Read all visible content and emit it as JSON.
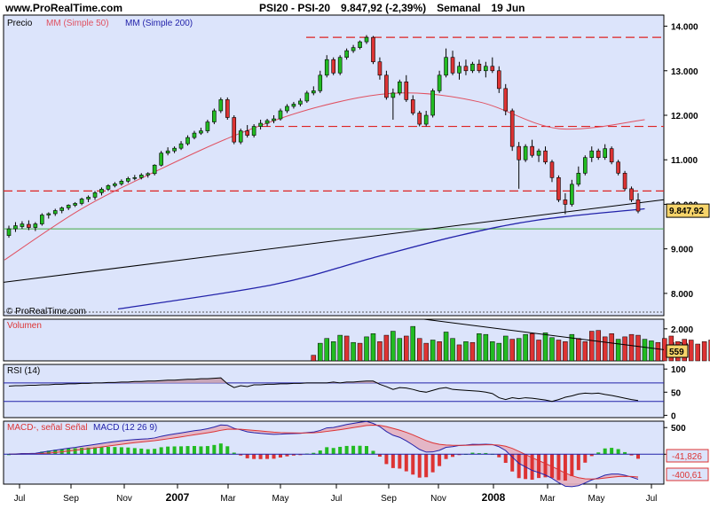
{
  "header": {
    "site": "www.ProRealTime.com",
    "instrument": "PSI20 - PSI-20",
    "price_change": "9.847,92 (-2,39%)",
    "period": "Semanal",
    "date": "19 Jun"
  },
  "colors": {
    "panel_bg": "#dce4fb",
    "up": "#22bb22",
    "down": "#dd3333",
    "ma50": "#e05060",
    "ma200": "#2222aa",
    "resistance": "#dd2222",
    "support": "#44aa44",
    "trend": "#000000"
  },
  "chart_data": [
    {
      "type": "candlestick",
      "title": "Precio",
      "legend": [
        "MM (Simple 50)",
        "MM (Simple 200)"
      ],
      "watermark": "© ProRealTime.com",
      "ylim": [
        7500,
        14250
      ],
      "yticks": [
        8000,
        9000,
        10000,
        11000,
        12000,
        13000,
        14000
      ],
      "ytick_labels": [
        "8.000",
        "9.000",
        "10.000",
        "11.000",
        "12.000",
        "13.000",
        "14.000"
      ],
      "last_price_label": "9.847,92",
      "last_price": 9847.92,
      "xticks": [
        "Jul",
        "Sep",
        "Nov",
        "2007",
        "Mar",
        "May",
        "Jul",
        "Sep",
        "Nov",
        "2008",
        "Mar",
        "May",
        "Jul"
      ],
      "candles": [
        {
          "o": 9300,
          "h": 9520,
          "l": 9250,
          "c": 9450
        },
        {
          "o": 9450,
          "h": 9600,
          "l": 9380,
          "c": 9520
        },
        {
          "o": 9500,
          "h": 9620,
          "l": 9450,
          "c": 9560
        },
        {
          "o": 9550,
          "h": 9640,
          "l": 9420,
          "c": 9480
        },
        {
          "o": 9480,
          "h": 9600,
          "l": 9400,
          "c": 9560
        },
        {
          "o": 9560,
          "h": 9800,
          "l": 9520,
          "c": 9760
        },
        {
          "o": 9760,
          "h": 9820,
          "l": 9680,
          "c": 9790
        },
        {
          "o": 9790,
          "h": 9900,
          "l": 9740,
          "c": 9860
        },
        {
          "o": 9860,
          "h": 9950,
          "l": 9800,
          "c": 9920
        },
        {
          "o": 9920,
          "h": 10000,
          "l": 9870,
          "c": 9980
        },
        {
          "o": 9980,
          "h": 10050,
          "l": 9940,
          "c": 10020
        },
        {
          "o": 10020,
          "h": 10150,
          "l": 9980,
          "c": 10120
        },
        {
          "o": 10120,
          "h": 10200,
          "l": 10050,
          "c": 10160
        },
        {
          "o": 10160,
          "h": 10300,
          "l": 10100,
          "c": 10260
        },
        {
          "o": 10260,
          "h": 10380,
          "l": 10200,
          "c": 10340
        },
        {
          "o": 10340,
          "h": 10450,
          "l": 10300,
          "c": 10420
        },
        {
          "o": 10420,
          "h": 10500,
          "l": 10380,
          "c": 10460
        },
        {
          "o": 10460,
          "h": 10560,
          "l": 10420,
          "c": 10520
        },
        {
          "o": 10520,
          "h": 10620,
          "l": 10480,
          "c": 10580
        },
        {
          "o": 10580,
          "h": 10660,
          "l": 10540,
          "c": 10600
        },
        {
          "o": 10600,
          "h": 10700,
          "l": 10560,
          "c": 10660
        },
        {
          "o": 10660,
          "h": 10720,
          "l": 10600,
          "c": 10690
        },
        {
          "o": 10690,
          "h": 10900,
          "l": 10650,
          "c": 10880
        },
        {
          "o": 10880,
          "h": 11200,
          "l": 10850,
          "c": 11150
        },
        {
          "o": 11150,
          "h": 11280,
          "l": 11100,
          "c": 11200
        },
        {
          "o": 11200,
          "h": 11300,
          "l": 11150,
          "c": 11260
        },
        {
          "o": 11260,
          "h": 11420,
          "l": 11220,
          "c": 11360
        },
        {
          "o": 11360,
          "h": 11550,
          "l": 11320,
          "c": 11500
        },
        {
          "o": 11500,
          "h": 11650,
          "l": 11460,
          "c": 11600
        },
        {
          "o": 11600,
          "h": 11720,
          "l": 11560,
          "c": 11650
        },
        {
          "o": 11650,
          "h": 11900,
          "l": 11600,
          "c": 11850
        },
        {
          "o": 11850,
          "h": 12150,
          "l": 11800,
          "c": 12100
        },
        {
          "o": 12100,
          "h": 12400,
          "l": 12050,
          "c": 12350
        },
        {
          "o": 12350,
          "h": 12400,
          "l": 11900,
          "c": 11950
        },
        {
          "o": 11950,
          "h": 12000,
          "l": 11350,
          "c": 11400
        },
        {
          "o": 11400,
          "h": 11700,
          "l": 11350,
          "c": 11650
        },
        {
          "o": 11650,
          "h": 11780,
          "l": 11500,
          "c": 11550
        },
        {
          "o": 11550,
          "h": 11800,
          "l": 11500,
          "c": 11750
        },
        {
          "o": 11750,
          "h": 11900,
          "l": 11680,
          "c": 11820
        },
        {
          "o": 11820,
          "h": 11920,
          "l": 11750,
          "c": 11880
        },
        {
          "o": 11880,
          "h": 12000,
          "l": 11820,
          "c": 11920
        },
        {
          "o": 11920,
          "h": 12150,
          "l": 11880,
          "c": 12100
        },
        {
          "o": 12100,
          "h": 12250,
          "l": 12050,
          "c": 12200
        },
        {
          "o": 12200,
          "h": 12300,
          "l": 12150,
          "c": 12250
        },
        {
          "o": 12250,
          "h": 12380,
          "l": 12200,
          "c": 12320
        },
        {
          "o": 12320,
          "h": 12550,
          "l": 12280,
          "c": 12500
        },
        {
          "o": 12500,
          "h": 12650,
          "l": 12450,
          "c": 12550
        },
        {
          "o": 12550,
          "h": 13000,
          "l": 12500,
          "c": 12900
        },
        {
          "o": 12900,
          "h": 13350,
          "l": 12850,
          "c": 13250
        },
        {
          "o": 13250,
          "h": 13300,
          "l": 12900,
          "c": 12950
        },
        {
          "o": 12950,
          "h": 13350,
          "l": 12900,
          "c": 13300
        },
        {
          "o": 13300,
          "h": 13500,
          "l": 13250,
          "c": 13450
        },
        {
          "o": 13450,
          "h": 13580,
          "l": 13400,
          "c": 13520
        },
        {
          "o": 13520,
          "h": 13680,
          "l": 13480,
          "c": 13650
        },
        {
          "o": 13650,
          "h": 13800,
          "l": 13600,
          "c": 13750
        },
        {
          "o": 13750,
          "h": 13780,
          "l": 13150,
          "c": 13200
        },
        {
          "o": 13200,
          "h": 13300,
          "l": 12800,
          "c": 12900
        },
        {
          "o": 12900,
          "h": 13000,
          "l": 12350,
          "c": 12400
        },
        {
          "o": 12400,
          "h": 12600,
          "l": 11900,
          "c": 12500
        },
        {
          "o": 12500,
          "h": 12800,
          "l": 12450,
          "c": 12750
        },
        {
          "o": 12750,
          "h": 12900,
          "l": 12300,
          "c": 12350
        },
        {
          "o": 12350,
          "h": 12450,
          "l": 12000,
          "c": 12050
        },
        {
          "o": 12050,
          "h": 12100,
          "l": 11750,
          "c": 11800
        },
        {
          "o": 11800,
          "h": 12100,
          "l": 11750,
          "c": 12000
        },
        {
          "o": 12000,
          "h": 12600,
          "l": 11950,
          "c": 12550
        },
        {
          "o": 12550,
          "h": 13000,
          "l": 12500,
          "c": 12900
        },
        {
          "o": 12900,
          "h": 13500,
          "l": 12850,
          "c": 13300
        },
        {
          "o": 13300,
          "h": 13450,
          "l": 12900,
          "c": 12950
        },
        {
          "o": 12950,
          "h": 13200,
          "l": 12800,
          "c": 13100
        },
        {
          "o": 13100,
          "h": 13250,
          "l": 12900,
          "c": 13000
        },
        {
          "o": 13000,
          "h": 13200,
          "l": 12950,
          "c": 13150
        },
        {
          "o": 13150,
          "h": 13250,
          "l": 12950,
          "c": 13000
        },
        {
          "o": 13000,
          "h": 13200,
          "l": 12850,
          "c": 13100
        },
        {
          "o": 13100,
          "h": 13300,
          "l": 12950,
          "c": 13000
        },
        {
          "o": 13000,
          "h": 13100,
          "l": 12500,
          "c": 12600
        },
        {
          "o": 12600,
          "h": 12700,
          "l": 12000,
          "c": 12100
        },
        {
          "o": 12100,
          "h": 12150,
          "l": 11200,
          "c": 11300
        },
        {
          "o": 11300,
          "h": 11400,
          "l": 10350,
          "c": 11000
        },
        {
          "o": 11000,
          "h": 11350,
          "l": 10950,
          "c": 11300
        },
        {
          "o": 11300,
          "h": 11450,
          "l": 11050,
          "c": 11100
        },
        {
          "o": 11100,
          "h": 11250,
          "l": 10950,
          "c": 11200
        },
        {
          "o": 11200,
          "h": 11300,
          "l": 10900,
          "c": 10950
        },
        {
          "o": 10950,
          "h": 11000,
          "l": 10500,
          "c": 10600
        },
        {
          "o": 10600,
          "h": 10650,
          "l": 10050,
          "c": 10100
        },
        {
          "o": 10100,
          "h": 10250,
          "l": 9780,
          "c": 10000
        },
        {
          "o": 10000,
          "h": 10550,
          "l": 9950,
          "c": 10450
        },
        {
          "o": 10450,
          "h": 10850,
          "l": 10400,
          "c": 10700
        },
        {
          "o": 10700,
          "h": 11100,
          "l": 10650,
          "c": 11050
        },
        {
          "o": 11050,
          "h": 11300,
          "l": 10950,
          "c": 11200
        },
        {
          "o": 11200,
          "h": 11250,
          "l": 11000,
          "c": 11050
        },
        {
          "o": 11050,
          "h": 11350,
          "l": 11000,
          "c": 11250
        },
        {
          "o": 11250,
          "h": 11300,
          "l": 10900,
          "c": 10950
        },
        {
          "o": 10950,
          "h": 11000,
          "l": 10650,
          "c": 10700
        },
        {
          "o": 10700,
          "h": 10750,
          "l": 10300,
          "c": 10350
        },
        {
          "o": 10350,
          "h": 10400,
          "l": 10050,
          "c": 10100
        },
        {
          "o": 10100,
          "h": 10250,
          "l": 9800,
          "c": 9848
        }
      ],
      "ma50": [
        9200,
        9900,
        10800,
        11600,
        12200,
        12500,
        12300,
        11700,
        10700
      ],
      "ma200": [
        null,
        null,
        8580,
        9000,
        9400,
        9700,
        9900,
        9950,
        10000
      ],
      "trendline_black": [
        [
          0,
          8250
        ],
        [
          96,
          10050
        ]
      ],
      "trendline_blue_end": [
        96,
        9900
      ],
      "resistance_levels": [
        13750,
        11750,
        10300
      ],
      "support_level": 9450
    },
    {
      "type": "bar",
      "title": "Volumen",
      "ylim": [
        0,
        2600
      ],
      "yticks": [
        1000,
        2000
      ],
      "ytick_labels": [
        "1.000",
        "2.000"
      ],
      "last_label": "559",
      "values_start_index": 46,
      "values": [
        350,
        1100,
        1400,
        1200,
        1600,
        1550,
        1150,
        1100,
        1500,
        1700,
        1200,
        1600,
        1850,
        1400,
        1550,
        2150,
        1400,
        1100,
        1300,
        1200,
        1800,
        1400,
        1000,
        1200,
        1150,
        1700,
        1650,
        1200,
        1100,
        1550,
        1350,
        1400,
        1650,
        1700,
        1300,
        1750,
        1450,
        1300,
        1200,
        1650,
        1400,
        1200,
        1850,
        1900,
        1500,
        1700,
        1350,
        1500,
        1650,
        1600,
        1350,
        1250,
        1150,
        1400,
        1550,
        1200,
        1350,
        1300,
        1050,
        1200,
        1300,
        1250,
        1250,
        1200,
        1150,
        1050,
        1000,
        950,
        900,
        900,
        850,
        800,
        750,
        700,
        650,
        700,
        600,
        559
      ],
      "colors": [
        "r",
        "g",
        "g",
        "g",
        "g",
        "r",
        "g",
        "r",
        "g",
        "g",
        "r",
        "r",
        "g",
        "g",
        "r",
        "g",
        "r",
        "r",
        "g",
        "r",
        "g",
        "g",
        "r",
        "g",
        "r",
        "g",
        "g",
        "g",
        "g",
        "g",
        "r",
        "g",
        "g",
        "r",
        "r",
        "g",
        "g",
        "r",
        "r",
        "g",
        "r",
        "r",
        "r",
        "r",
        "r",
        "r",
        "g",
        "r",
        "r",
        "r",
        "g",
        "g",
        "r",
        "r",
        "r",
        "r",
        "r",
        "r",
        "r",
        "r",
        "r",
        "g",
        "g",
        "r",
        "r",
        "g",
        "g",
        "r",
        "r",
        "g",
        "r",
        "g",
        "r",
        "r",
        "r",
        "r",
        "r",
        "r"
      ],
      "trendline": [
        [
          60,
          2600
        ],
        [
          96,
          700
        ]
      ]
    },
    {
      "type": "line",
      "title": "RSI (14)",
      "ylim": [
        -5,
        110
      ],
      "yticks": [
        0,
        50,
        100
      ],
      "ytick_labels": [
        "0",
        "50",
        "100"
      ],
      "levels": [
        70,
        30
      ],
      "values": [
        63,
        64,
        64,
        65,
        65,
        66,
        66,
        67,
        67,
        68,
        68,
        69,
        69,
        70,
        70,
        71,
        71,
        72,
        72,
        73,
        73,
        74,
        74,
        75,
        76,
        76,
        77,
        78,
        78,
        79,
        79,
        80,
        81,
        68,
        60,
        64,
        62,
        66,
        66,
        67,
        67,
        68,
        68,
        69,
        69,
        70,
        70,
        70,
        70,
        72,
        70,
        72,
        72,
        73,
        74,
        74,
        67,
        62,
        56,
        60,
        59,
        56,
        52,
        50,
        54,
        58,
        60,
        56,
        55,
        54,
        53,
        52,
        50,
        47,
        38,
        34,
        38,
        36,
        38,
        37,
        35,
        33,
        30,
        34,
        39,
        42,
        46,
        48,
        47,
        48,
        45,
        43,
        40,
        37,
        34,
        32
      ]
    },
    {
      "type": "line",
      "title": "MACD-, señal Señal",
      "legend": "MACD (12 26 9)",
      "ylim": [
        -560,
        620
      ],
      "yticks": [
        0,
        500
      ],
      "ytick_labels": [
        "0",
        "500"
      ],
      "right_labels": [
        "-41,826",
        "-400,61"
      ],
      "right_values": [
        -41.826,
        -400.61
      ]
    }
  ]
}
